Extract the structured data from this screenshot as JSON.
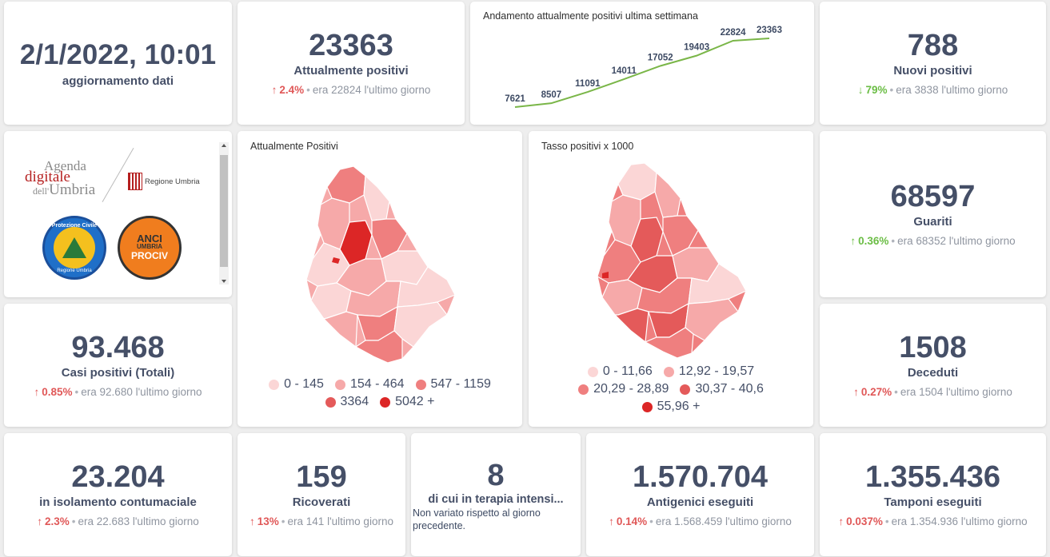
{
  "update": {
    "datetime": "2/1/2022, 10:01",
    "label": "aggiornamento dati"
  },
  "attualmente_positivi": {
    "value": "23363",
    "label": "Attualmente positivi",
    "pct": "2.4%",
    "prev": "era 22824",
    "suffix": "l'ultimo giorno"
  },
  "trend": {
    "title": "Andamento attualmente positivi ultima settimana",
    "chart_data": {
      "type": "line",
      "title": "Andamento attualmente positivi ultima settimana",
      "values": [
        7621,
        8507,
        11091,
        14011,
        17052,
        19403,
        22824,
        23363
      ],
      "labels": [
        "7621",
        "8507",
        "11091",
        "14011",
        "17052",
        "19403",
        "22824",
        "23363"
      ],
      "color": "#7ab648"
    }
  },
  "nuovi_positivi": {
    "value": "788",
    "label": "Nuovi positivi",
    "pct": "79%",
    "prev": "era 3838",
    "suffix": "l'ultimo giorno"
  },
  "logos": {
    "agenda_line1": "Agenda",
    "agenda_line2": "digitale",
    "agenda_line3a": "dell'",
    "agenda_line3b": "Umbria",
    "regione": "Regione Umbria",
    "protezione": "Protezione Civile",
    "protezione_sub": "Regione Umbria",
    "anci_1": "ANCI",
    "anci_2": "UMBRIA",
    "anci_3": "PROCIV"
  },
  "map_positivi": {
    "title": "Attualmente Positivi",
    "legend": [
      {
        "label": "0 - 145",
        "color": "#fbd6d6"
      },
      {
        "label": "154 - 464",
        "color": "#f6a9a9"
      },
      {
        "label": "547 - 1159",
        "color": "#ef7f7f"
      },
      {
        "label": "3364",
        "color": "#e45a5a"
      },
      {
        "label": "5042 +",
        "color": "#dc2626"
      }
    ]
  },
  "map_tasso": {
    "title": "Tasso positivi x 1000",
    "legend": [
      {
        "label": "0 - 11,66",
        "color": "#fbd6d6"
      },
      {
        "label": "12,92 - 19,57",
        "color": "#f6a9a9"
      },
      {
        "label": "20,29 - 28,89",
        "color": "#ef7f7f"
      },
      {
        "label": "30,37 - 40,6",
        "color": "#e45a5a"
      },
      {
        "label": "55,96 +",
        "color": "#dc2626"
      }
    ]
  },
  "guariti": {
    "value": "68597",
    "label": "Guariti",
    "pct": "0.36%",
    "prev": "era 68352",
    "suffix": "l'ultimo giorno"
  },
  "casi_totali": {
    "value": "93.468",
    "label": "Casi positivi (Totali)",
    "pct": "0.85%",
    "prev": "era 92.680",
    "suffix": "l'ultimo giorno"
  },
  "deceduti": {
    "value": "1508",
    "label": "Deceduti",
    "pct": "0.27%",
    "prev": "era 1504",
    "suffix": "l'ultimo giorno"
  },
  "isolamento": {
    "value": "23.204",
    "label": "in isolamento contumaciale",
    "pct": "2.3%",
    "prev": "era 22.683",
    "suffix": "l'ultimo giorno"
  },
  "ricoverati": {
    "value": "159",
    "label": "Ricoverati",
    "pct": "13%",
    "prev": "era 141",
    "suffix": "l'ultimo giorno"
  },
  "terapia": {
    "value": "8",
    "label": "di cui in terapia intensi...",
    "note": "Non variato rispetto al giorno precedente."
  },
  "antigenici": {
    "value": "1.570.704",
    "label": "Antigenici eseguiti",
    "pct": "0.14%",
    "prev": "era 1.568.459",
    "suffix": "l'ultimo giorno"
  },
  "tamponi": {
    "value": "1.355.436",
    "label": "Tamponi eseguiti",
    "pct": "0.037%",
    "prev": "era 1.354.936",
    "suffix": "l'ultimo giorno"
  }
}
